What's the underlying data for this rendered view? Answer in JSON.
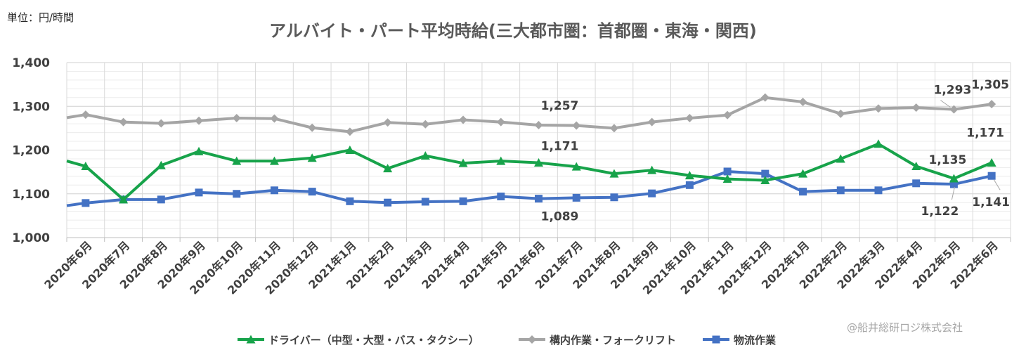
{
  "unit_label": "単位：円/時間",
  "credit": "@船井総研ロジ株式会社",
  "chart_data": {
    "type": "line",
    "title": "アルバイト・パート平均時給(三大都市圏：首都圏・東海・関西)",
    "xlabel": "",
    "ylabel": "",
    "ylim": [
      1000,
      1400
    ],
    "yticks": [
      1000,
      1100,
      1200,
      1300,
      1400
    ],
    "ytick_labels": [
      "1,000",
      "1,100",
      "1,200",
      "1,300",
      "1,400"
    ],
    "grid": true,
    "legend_position": "bottom",
    "categories": [
      "2020年6月",
      "2020年7月",
      "2020年8月",
      "2020年9月",
      "2020年10月",
      "2020年11月",
      "2020年12月",
      "2021年1月",
      "2021年2月",
      "2021年3月",
      "2021年4月",
      "2021年5月",
      "2021年6月",
      "2021年7月",
      "2021年8月",
      "2021年9月",
      "2021年10月",
      "2021年11月",
      "2021年12月",
      "2022年1月",
      "2022年2月",
      "2022年3月",
      "2022年4月",
      "2022年5月",
      "2022年6月"
    ],
    "series": [
      {
        "name": "ドライバー（中型・大型・バス・タクシー）",
        "color": "#17a34a",
        "marker": "triangle",
        "lead_in": 1175,
        "values": [
          1163,
          1087,
          1165,
          1197,
          1175,
          1175,
          1182,
          1200,
          1158,
          1187,
          1170,
          1175,
          1171,
          1162,
          1146,
          1154,
          1142,
          1134,
          1131,
          1146,
          1180,
          1214,
          1163,
          1135,
          1171
        ]
      },
      {
        "name": "構内作業・フォークリフト",
        "color": "#a5a5a5",
        "marker": "diamond",
        "lead_in": 1274,
        "values": [
          1281,
          1264,
          1261,
          1267,
          1273,
          1272,
          1251,
          1242,
          1263,
          1259,
          1269,
          1264,
          1257,
          1256,
          1250,
          1264,
          1273,
          1280,
          1320,
          1310,
          1283,
          1295,
          1297,
          1293,
          1305
        ]
      },
      {
        "name": "物流作業",
        "color": "#4472c4",
        "marker": "square",
        "lead_in": 1073,
        "values": [
          1079,
          1087,
          1087,
          1103,
          1100,
          1108,
          1105,
          1083,
          1080,
          1082,
          1083,
          1094,
          1089,
          1091,
          1092,
          1101,
          1120,
          1151,
          1146,
          1105,
          1108,
          1108,
          1124,
          1122,
          1141
        ]
      }
    ],
    "data_labels": [
      {
        "series": 1,
        "index": 12,
        "text": "1,257"
      },
      {
        "series": 0,
        "index": 12,
        "text": "1,171"
      },
      {
        "series": 2,
        "index": 12,
        "text": "1,089"
      },
      {
        "series": 1,
        "index": 23,
        "text": "1,293"
      },
      {
        "series": 1,
        "index": 24,
        "text": "1,305"
      },
      {
        "series": 0,
        "index": 23,
        "text": "1,135"
      },
      {
        "series": 0,
        "index": 24,
        "text": "1,171"
      },
      {
        "series": 2,
        "index": 23,
        "text": "1,122"
      },
      {
        "series": 2,
        "index": 24,
        "text": "1,141"
      }
    ]
  }
}
